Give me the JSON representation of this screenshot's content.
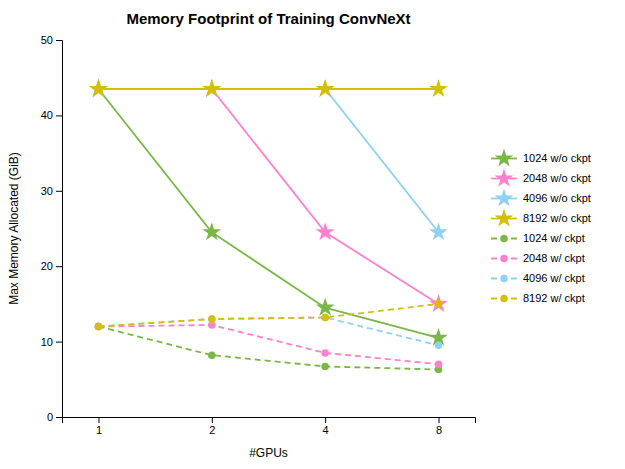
{
  "chart_data": {
    "type": "line",
    "title": "Memory Footprint of Training ConvNeXt",
    "x_label": "#GPUs",
    "y_label": "Max Memory Allocated (GiB)",
    "x": [
      1,
      2,
      4,
      8
    ],
    "log": "x",
    "xlim": [
      0.8,
      10
    ],
    "xticks": [
      1,
      2,
      4,
      8
    ],
    "ylim": [
      0,
      50
    ],
    "yticks": [
      0,
      10,
      20,
      30,
      40,
      50
    ],
    "grid": false,
    "legend": "right",
    "series": [
      {
        "name": "1024 w/o ckpt",
        "color": "#7ab648",
        "line_style": "solid",
        "marker": "star",
        "values": [
          43.5,
          24.5,
          14.5,
          10.5
        ]
      },
      {
        "name": "2048 w/o ckpt",
        "color": "#ff80cc",
        "line_style": "solid",
        "marker": "star",
        "values": [
          43.5,
          43.5,
          24.5,
          15.0
        ]
      },
      {
        "name": "4096 w/o ckpt",
        "color": "#90d0f0",
        "line_style": "solid",
        "marker": "star",
        "values": [
          43.5,
          43.5,
          43.5,
          24.5
        ]
      },
      {
        "name": "8192 w/o ckpt",
        "color": "#d4c000",
        "line_style": "solid",
        "marker": "star",
        "values": [
          43.5,
          43.5,
          43.5,
          43.5
        ]
      },
      {
        "name": "1024 w/ ckpt",
        "color": "#7ab648",
        "line_style": "dashed",
        "marker": "circle",
        "values": [
          12.0,
          8.2,
          6.7,
          6.3
        ]
      },
      {
        "name": "2048 w/ ckpt",
        "color": "#ff80cc",
        "line_style": "dashed",
        "marker": "circle",
        "values": [
          12.0,
          12.2,
          8.5,
          7.0
        ]
      },
      {
        "name": "4096 w/ ckpt",
        "color": "#90d0f0",
        "line_style": "dashed",
        "marker": "circle",
        "values": [
          12.0,
          13.0,
          13.2,
          9.5
        ]
      },
      {
        "name": "8192 w/ ckpt",
        "color": "#d4c000",
        "line_style": "dashed",
        "marker": "circle",
        "values": [
          12.0,
          13.0,
          13.2,
          15.0
        ]
      }
    ]
  }
}
